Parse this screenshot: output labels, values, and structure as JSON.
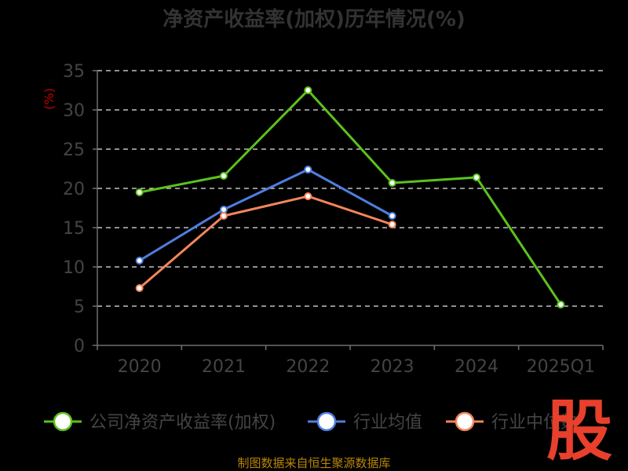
{
  "chart_data": {
    "type": "line",
    "title": "净资产收益率(加权)历年情况(%)",
    "ylabel": "(%)",
    "ylim": [
      0,
      35
    ],
    "yticks": [
      0,
      5,
      10,
      15,
      20,
      25,
      30,
      35
    ],
    "categories": [
      "2020",
      "2021",
      "2022",
      "2023",
      "2024",
      "2025Q1"
    ],
    "grid": true,
    "legend_position": "bottom",
    "series": [
      {
        "name": "公司净资产收益率(加权)",
        "color": "#5cc21c",
        "values": [
          19.5,
          21.6,
          32.5,
          20.7,
          21.4,
          5.2
        ]
      },
      {
        "name": "行业均值",
        "color": "#4f7ee0",
        "values": [
          10.8,
          17.3,
          22.4,
          16.5,
          null,
          null
        ]
      },
      {
        "name": "行业中位数",
        "color": "#f5855b",
        "values": [
          7.3,
          16.5,
          19.0,
          15.4,
          null,
          null
        ]
      }
    ]
  },
  "source_text": "制图数据来自恒生聚源数据库",
  "watermark_text": "股"
}
